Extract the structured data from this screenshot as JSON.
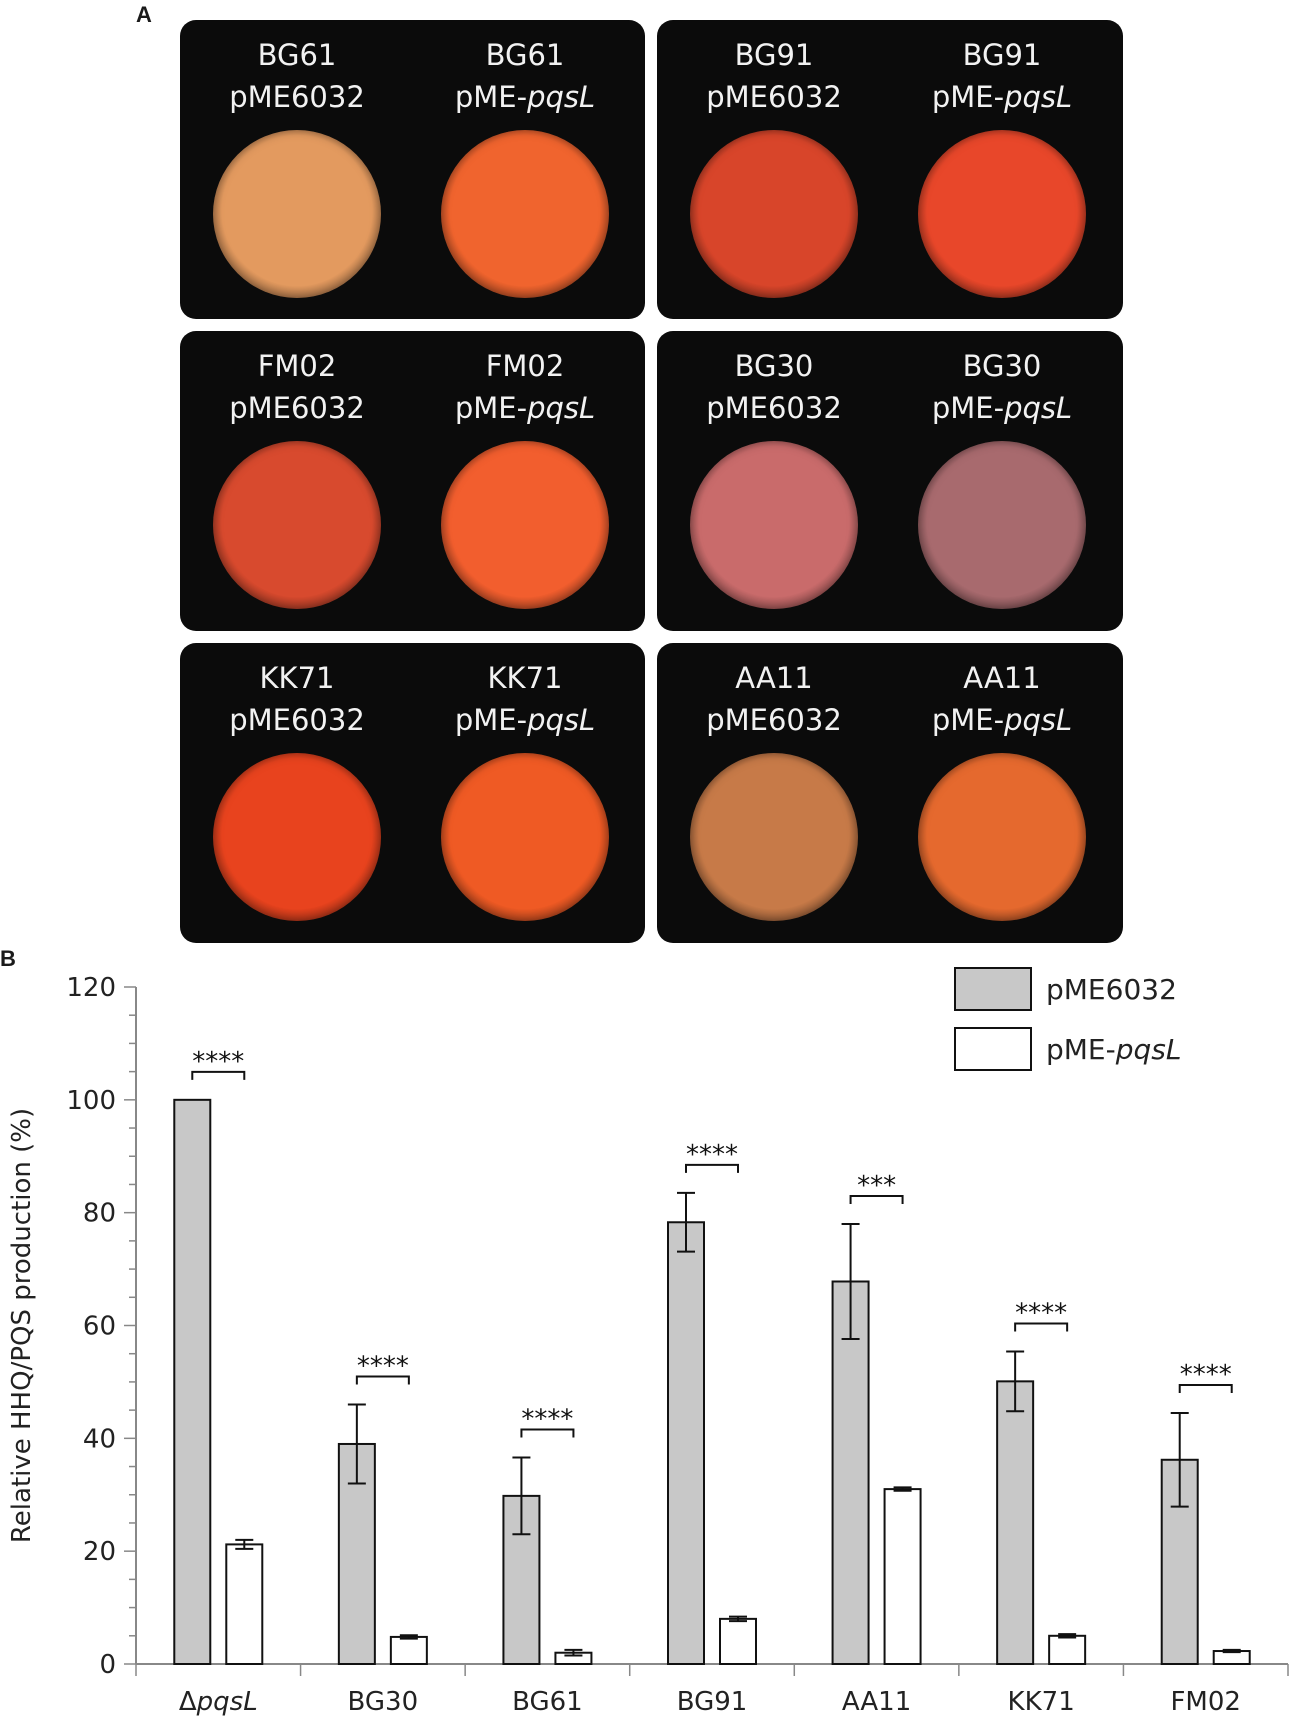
{
  "panel_a": {
    "letter": "A",
    "tiles": [
      {
        "left": {
          "strain": "BG61",
          "plasmid_prefix": "pME6032",
          "plasmid_italic": ""
        },
        "right": {
          "strain": "BG61",
          "plasmid_prefix": "pME-",
          "plasmid_italic": "pqsL"
        }
      },
      {
        "left": {
          "strain": "BG91",
          "plasmid_prefix": "pME6032",
          "plasmid_italic": ""
        },
        "right": {
          "strain": "BG91",
          "plasmid_prefix": "pME-",
          "plasmid_italic": "pqsL"
        }
      },
      {
        "left": {
          "strain": "FM02",
          "plasmid_prefix": "pME6032",
          "plasmid_italic": ""
        },
        "right": {
          "strain": "FM02",
          "plasmid_prefix": "pME-",
          "plasmid_italic": "pqsL"
        }
      },
      {
        "left": {
          "strain": "BG30",
          "plasmid_prefix": "pME6032",
          "plasmid_italic": ""
        },
        "right": {
          "strain": "BG30",
          "plasmid_prefix": "pME-",
          "plasmid_italic": "pqsL"
        }
      },
      {
        "left": {
          "strain": "KK71",
          "plasmid_prefix": "pME6032",
          "plasmid_italic": ""
        },
        "right": {
          "strain": "KK71",
          "plasmid_prefix": "pME-",
          "plasmid_italic": "pqsL"
        }
      },
      {
        "left": {
          "strain": "AA11",
          "plasmid_prefix": "pME6032",
          "plasmid_italic": ""
        },
        "right": {
          "strain": "AA11",
          "plasmid_prefix": "pME-",
          "plasmid_italic": "pqsL"
        }
      }
    ],
    "colony_colors": [
      "#e39a5f",
      "#f0642e",
      "#d8452a",
      "#e8472a",
      "#d84a2e",
      "#f25e2e",
      "#c96b6b",
      "#a86a6e",
      "#e8431e",
      "#ef5a24",
      "#c77a48",
      "#e5692e"
    ]
  },
  "panel_b": {
    "letter": "B"
  },
  "chart_data": {
    "type": "bar",
    "title": "",
    "xlabel": "",
    "ylabel": "Relative HHQ/PQS production (%)",
    "ylim": [
      0,
      120
    ],
    "yticks": [
      0,
      20,
      40,
      60,
      80,
      100,
      120
    ],
    "categories": [
      "ΔpqsL",
      "BG30",
      "BG61",
      "BG91",
      "AA11",
      "KK71",
      "FM02"
    ],
    "category_prefix": [
      "Δ",
      "",
      "",
      "",
      "",
      "",
      ""
    ],
    "category_italic": [
      "pqsL",
      "",
      "",
      "",
      "",
      "",
      ""
    ],
    "series": [
      {
        "name": "pME6032",
        "color": "#c8c8c8",
        "values": [
          100,
          39,
          29.8,
          78.3,
          67.8,
          50.1,
          36.2
        ],
        "errors": [
          0,
          7,
          6.8,
          5.2,
          10.2,
          5.3,
          8.3
        ]
      },
      {
        "name": "pME-pqsL",
        "name_prefix": "pME-",
        "name_italic": "pqsL",
        "color": "#ffffff",
        "values": [
          21.2,
          4.8,
          2.0,
          8.0,
          31.0,
          5.0,
          2.3
        ],
        "errors": [
          0.8,
          0.3,
          0.5,
          0.4,
          0.3,
          0.3,
          0.2
        ]
      }
    ],
    "significance": [
      "****",
      "****",
      "****",
      "****",
      "***",
      "****",
      "****"
    ],
    "legend_position": "top-right",
    "grid": false
  }
}
